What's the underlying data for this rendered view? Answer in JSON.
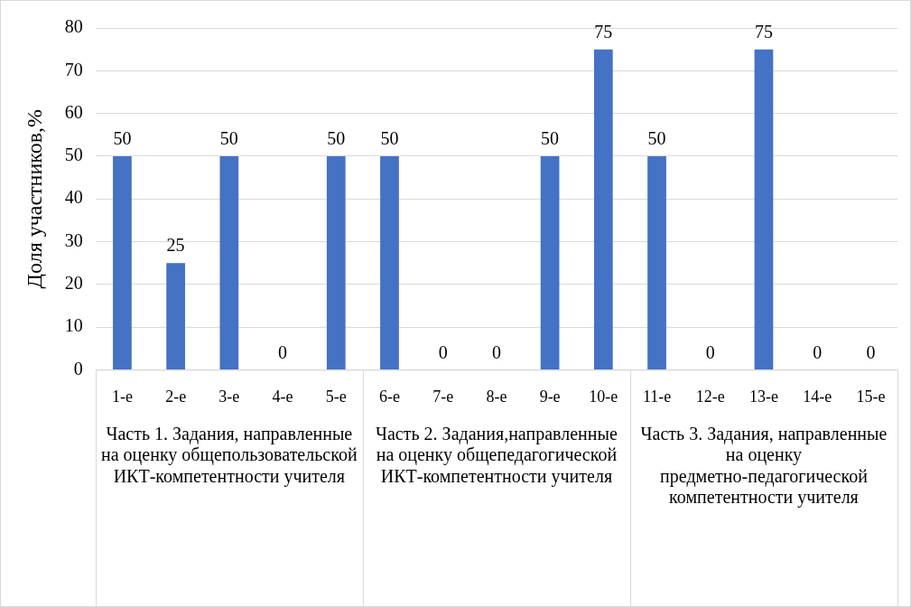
{
  "chart_data": {
    "type": "bar",
    "ylabel": "Доля участников,%",
    "categories": [
      "1-е",
      "2-е",
      "3-е",
      "4-е",
      "5-е",
      "6-е",
      "7-е",
      "8-е",
      "9-е",
      "10-е",
      "11-е",
      "12-е",
      "13-е",
      "14-е",
      "15-е"
    ],
    "values": [
      50,
      25,
      50,
      0,
      50,
      50,
      0,
      0,
      50,
      75,
      50,
      0,
      75,
      0,
      0
    ],
    "color": "#4472c4",
    "ylim": [
      0,
      80
    ],
    "yticks": [
      0,
      10,
      20,
      30,
      40,
      50,
      60,
      70,
      80
    ],
    "grid": "y",
    "legend": false,
    "data_labels": true,
    "annotations": [
      "Часть 1. Задания, направленные на оценку общепользовательской ИКТ-компетентности учителя",
      "Часть 2. Задания,направленные на оценку общепедагогической ИКТ-компетентности учителя",
      "Часть 3. Задания, направленные на оценку предметно-педагогической компетентности учителя"
    ]
  }
}
